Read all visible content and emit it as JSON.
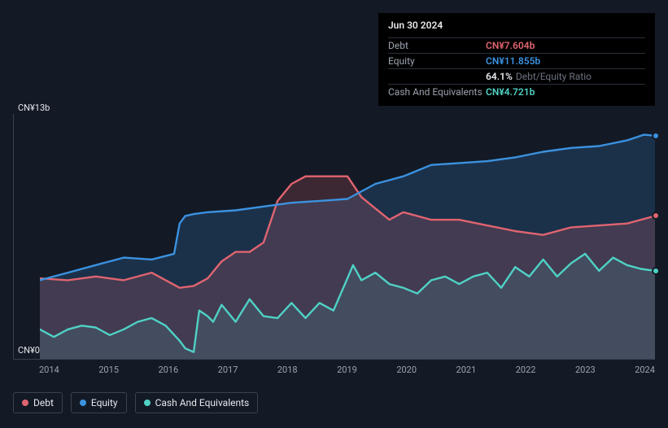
{
  "info": {
    "date": "Jun 30 2024",
    "rows": [
      {
        "label": "Debt",
        "value": "CN¥7.604b",
        "color": "#e06470"
      },
      {
        "label": "Equity",
        "value": "CN¥11.855b",
        "color": "#3b92e0"
      },
      {
        "label": "",
        "value": "64.1%",
        "sub": "Debt/Equity Ratio",
        "color": "#e5e7eb"
      },
      {
        "label": "Cash And Equivalents",
        "value": "CN¥4.721b",
        "color": "#4fd1c5"
      }
    ]
  },
  "chart": {
    "type": "area-line",
    "background": "#131a25",
    "grid_color": "#3a4150",
    "ylim": [
      0,
      13
    ],
    "y_axis_labels": {
      "top": "CN¥13b",
      "bottom": "CN¥0"
    },
    "y_label_fontsize": 11,
    "x_labels": [
      "2014",
      "2015",
      "2016",
      "2017",
      "2018",
      "2019",
      "2020",
      "2021",
      "2022",
      "2023",
      "2024"
    ],
    "x_domain": [
      2013.5,
      2024.5
    ],
    "x_label_fontsize": 11,
    "series": [
      {
        "name": "Cash And Equivalents",
        "color": "#4fd1c5",
        "fill": "rgba(79,209,197,0.12)",
        "points": [
          [
            2013.5,
            1.6
          ],
          [
            2013.75,
            1.2
          ],
          [
            2014.0,
            1.6
          ],
          [
            2014.25,
            1.8
          ],
          [
            2014.5,
            1.7
          ],
          [
            2014.75,
            1.3
          ],
          [
            2015.0,
            1.6
          ],
          [
            2015.25,
            2.0
          ],
          [
            2015.5,
            2.2
          ],
          [
            2015.75,
            1.8
          ],
          [
            2016.0,
            1.0
          ],
          [
            2016.1,
            0.6
          ],
          [
            2016.25,
            0.4
          ],
          [
            2016.35,
            2.6
          ],
          [
            2016.5,
            2.3
          ],
          [
            2016.6,
            2.0
          ],
          [
            2016.75,
            2.9
          ],
          [
            2017.0,
            2.0
          ],
          [
            2017.25,
            3.2
          ],
          [
            2017.5,
            2.3
          ],
          [
            2017.75,
            2.2
          ],
          [
            2018.0,
            3.0
          ],
          [
            2018.25,
            2.2
          ],
          [
            2018.5,
            3.0
          ],
          [
            2018.75,
            2.6
          ],
          [
            2019.0,
            4.3
          ],
          [
            2019.1,
            5.0
          ],
          [
            2019.25,
            4.2
          ],
          [
            2019.5,
            4.6
          ],
          [
            2019.75,
            4.0
          ],
          [
            2020.0,
            3.8
          ],
          [
            2020.25,
            3.5
          ],
          [
            2020.5,
            4.2
          ],
          [
            2020.75,
            4.4
          ],
          [
            2021.0,
            4.0
          ],
          [
            2021.25,
            4.4
          ],
          [
            2021.5,
            4.6
          ],
          [
            2021.75,
            3.8
          ],
          [
            2022.0,
            4.9
          ],
          [
            2022.25,
            4.4
          ],
          [
            2022.5,
            5.3
          ],
          [
            2022.75,
            4.4
          ],
          [
            2023.0,
            5.1
          ],
          [
            2023.25,
            5.6
          ],
          [
            2023.5,
            4.7
          ],
          [
            2023.75,
            5.4
          ],
          [
            2024.0,
            5.0
          ],
          [
            2024.25,
            4.8
          ],
          [
            2024.5,
            4.7
          ]
        ]
      },
      {
        "name": "Debt",
        "color": "#e06470",
        "fill": "rgba(224,100,112,0.20)",
        "points": [
          [
            2013.5,
            4.3
          ],
          [
            2014.0,
            4.2
          ],
          [
            2014.5,
            4.4
          ],
          [
            2015.0,
            4.2
          ],
          [
            2015.5,
            4.6
          ],
          [
            2016.0,
            3.8
          ],
          [
            2016.25,
            3.9
          ],
          [
            2016.5,
            4.3
          ],
          [
            2016.75,
            5.2
          ],
          [
            2017.0,
            5.7
          ],
          [
            2017.25,
            5.7
          ],
          [
            2017.5,
            6.2
          ],
          [
            2017.75,
            8.4
          ],
          [
            2018.0,
            9.3
          ],
          [
            2018.25,
            9.7
          ],
          [
            2018.5,
            9.7
          ],
          [
            2018.75,
            9.7
          ],
          [
            2019.0,
            9.7
          ],
          [
            2019.25,
            8.6
          ],
          [
            2019.5,
            8.0
          ],
          [
            2019.75,
            7.4
          ],
          [
            2020.0,
            7.8
          ],
          [
            2020.5,
            7.4
          ],
          [
            2021.0,
            7.4
          ],
          [
            2021.5,
            7.1
          ],
          [
            2022.0,
            6.8
          ],
          [
            2022.5,
            6.6
          ],
          [
            2023.0,
            7.0
          ],
          [
            2023.5,
            7.1
          ],
          [
            2024.0,
            7.2
          ],
          [
            2024.5,
            7.6
          ]
        ]
      },
      {
        "name": "Equity",
        "color": "#3b92e0",
        "fill": "rgba(59,146,224,0.20)",
        "points": [
          [
            2013.5,
            4.2
          ],
          [
            2014.0,
            4.6
          ],
          [
            2014.5,
            5.0
          ],
          [
            2015.0,
            5.4
          ],
          [
            2015.5,
            5.3
          ],
          [
            2015.9,
            5.6
          ],
          [
            2016.0,
            7.2
          ],
          [
            2016.1,
            7.6
          ],
          [
            2016.25,
            7.7
          ],
          [
            2016.5,
            7.8
          ],
          [
            2017.0,
            7.9
          ],
          [
            2017.5,
            8.1
          ],
          [
            2018.0,
            8.3
          ],
          [
            2018.5,
            8.4
          ],
          [
            2019.0,
            8.5
          ],
          [
            2019.5,
            9.3
          ],
          [
            2020.0,
            9.7
          ],
          [
            2020.5,
            10.3
          ],
          [
            2021.0,
            10.4
          ],
          [
            2021.5,
            10.5
          ],
          [
            2022.0,
            10.7
          ],
          [
            2022.5,
            11.0
          ],
          [
            2023.0,
            11.2
          ],
          [
            2023.5,
            11.3
          ],
          [
            2024.0,
            11.6
          ],
          [
            2024.3,
            11.9
          ],
          [
            2024.5,
            11.85
          ]
        ]
      }
    ],
    "end_markers": [
      {
        "series": "Equity",
        "x": 2024.5,
        "y": 11.85,
        "color": "#3b92e0"
      },
      {
        "series": "Debt",
        "x": 2024.5,
        "y": 7.6,
        "color": "#e06470"
      },
      {
        "series": "Cash And Equivalents",
        "x": 2024.5,
        "y": 4.7,
        "color": "#4fd1c5"
      }
    ],
    "line_width": 2.4
  },
  "legend": [
    {
      "label": "Debt",
      "color": "#e06470"
    },
    {
      "label": "Equity",
      "color": "#3b92e0"
    },
    {
      "label": "Cash And Equivalents",
      "color": "#4fd1c5"
    }
  ]
}
